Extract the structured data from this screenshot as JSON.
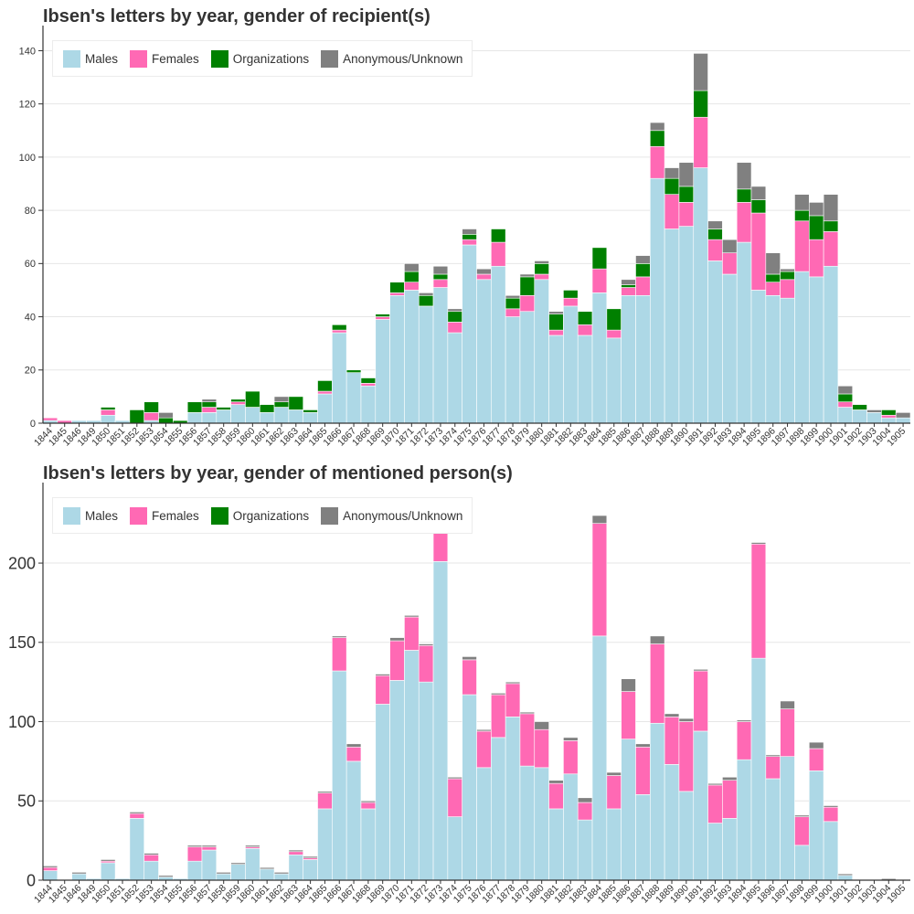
{
  "colors": {
    "Males": "#add8e6",
    "Females": "#ff69b4",
    "Organizations": "#008000",
    "Anonymous/Unknown": "#808080"
  },
  "chart_data": [
    {
      "type": "bar",
      "stacked": true,
      "title": "Ibsen's letters by year, gender of recipient(s)",
      "categories": [
        "1844",
        "1845",
        "1846",
        "1849",
        "1850",
        "1851",
        "1852",
        "1853",
        "1854",
        "1855",
        "1856",
        "1857",
        "1858",
        "1859",
        "1860",
        "1861",
        "1862",
        "1863",
        "1864",
        "1865",
        "1866",
        "1867",
        "1868",
        "1869",
        "1870",
        "1871",
        "1872",
        "1873",
        "1874",
        "1875",
        "1876",
        "1877",
        "1878",
        "1879",
        "1880",
        "1881",
        "1882",
        "1883",
        "1884",
        "1885",
        "1886",
        "1887",
        "1888",
        "1889",
        "1890",
        "1891",
        "1892",
        "1893",
        "1894",
        "1895",
        "1896",
        "1897",
        "1898",
        "1899",
        "1900",
        "1901",
        "1902",
        "1903",
        "1904",
        "1905"
      ],
      "series": [
        {
          "name": "Males",
          "values": [
            1,
            0,
            1,
            1,
            3,
            1,
            0,
            1,
            0,
            0,
            4,
            4,
            5,
            7,
            6,
            4,
            6,
            5,
            4,
            11,
            34,
            19,
            14,
            39,
            48,
            50,
            44,
            51,
            34,
            67,
            54,
            59,
            40,
            42,
            54,
            33,
            44,
            33,
            49,
            32,
            48,
            48,
            92,
            73,
            74,
            96,
            61,
            56,
            68,
            50,
            48,
            47,
            57,
            55,
            59,
            6,
            5,
            4,
            2,
            2
          ]
        },
        {
          "name": "Females",
          "values": [
            1,
            1,
            0,
            0,
            2,
            0,
            0,
            3,
            0,
            0,
            0,
            2,
            0,
            1,
            0,
            0,
            0,
            0,
            0,
            1,
            1,
            0,
            1,
            1,
            1,
            3,
            0,
            3,
            4,
            2,
            2,
            9,
            3,
            6,
            2,
            2,
            3,
            4,
            9,
            3,
            3,
            7,
            12,
            13,
            9,
            19,
            8,
            8,
            15,
            29,
            5,
            7,
            19,
            14,
            13,
            2,
            0,
            0,
            1,
            0
          ]
        },
        {
          "name": "Organizations",
          "values": [
            0,
            0,
            0,
            0,
            1,
            0,
            5,
            4,
            2,
            1,
            4,
            2,
            1,
            1,
            6,
            3,
            2,
            5,
            1,
            4,
            2,
            1,
            2,
            1,
            4,
            4,
            4,
            2,
            4,
            2,
            0,
            5,
            4,
            7,
            4,
            6,
            3,
            5,
            8,
            8,
            1,
            5,
            6,
            6,
            6,
            10,
            4,
            0,
            5,
            5,
            3,
            3,
            4,
            9,
            4,
            3,
            2,
            0,
            2,
            0
          ]
        },
        {
          "name": "Anonymous/Unknown",
          "values": [
            0,
            0,
            0,
            0,
            0,
            0,
            0,
            0,
            2,
            0,
            0,
            1,
            0,
            0,
            0,
            0,
            2,
            0,
            0,
            0,
            0,
            0,
            0,
            0,
            0,
            3,
            1,
            3,
            1,
            2,
            2,
            0,
            1,
            1,
            1,
            1,
            0,
            0,
            0,
            0,
            2,
            3,
            3,
            4,
            9,
            14,
            3,
            5,
            10,
            5,
            8,
            1,
            6,
            5,
            10,
            3,
            0,
            1,
            0,
            2
          ]
        }
      ],
      "ylim": [
        0,
        146
      ],
      "yticks": [
        0,
        20,
        40,
        60,
        80,
        100,
        120,
        140
      ],
      "legend_position": "top-left",
      "grid": "horizontal"
    },
    {
      "type": "bar",
      "stacked": true,
      "title": "Ibsen's letters by year, gender of mentioned person(s)",
      "categories": [
        "1844",
        "1845",
        "1846",
        "1849",
        "1850",
        "1851",
        "1852",
        "1853",
        "1854",
        "1855",
        "1856",
        "1857",
        "1858",
        "1859",
        "1860",
        "1861",
        "1862",
        "1863",
        "1864",
        "1865",
        "1866",
        "1867",
        "1868",
        "1869",
        "1870",
        "1871",
        "1872",
        "1873",
        "1874",
        "1875",
        "1876",
        "1877",
        "1878",
        "1879",
        "1880",
        "1881",
        "1882",
        "1883",
        "1884",
        "1885",
        "1886",
        "1887",
        "1888",
        "1889",
        "1890",
        "1891",
        "1892",
        "1893",
        "1894",
        "1895",
        "1896",
        "1897",
        "1898",
        "1899",
        "1900",
        "1901",
        "1902",
        "1903",
        "1904",
        "1905"
      ],
      "series": [
        {
          "name": "Males",
          "values": [
            6,
            0,
            4,
            1,
            11,
            1,
            39,
            12,
            2,
            1,
            12,
            19,
            4,
            10,
            20,
            7,
            4,
            16,
            13,
            45,
            132,
            75,
            45,
            111,
            126,
            145,
            125,
            201,
            40,
            117,
            71,
            90,
            103,
            72,
            71,
            45,
            67,
            38,
            154,
            45,
            89,
            54,
            99,
            73,
            56,
            94,
            36,
            39,
            76,
            140,
            64,
            78,
            22,
            69,
            37,
            3,
            0,
            0,
            0,
            0
          ]
        },
        {
          "name": "Females",
          "values": [
            2,
            0,
            0,
            0,
            1,
            0,
            3,
            4,
            0,
            0,
            9,
            2,
            0,
            0,
            1,
            0,
            0,
            2,
            1,
            10,
            21,
            9,
            4,
            18,
            25,
            21,
            23,
            19,
            24,
            22,
            23,
            27,
            21,
            33,
            24,
            16,
            21,
            11,
            71,
            21,
            30,
            30,
            50,
            30,
            44,
            38,
            24,
            24,
            24,
            72,
            14,
            30,
            18,
            14,
            9,
            0,
            0,
            0,
            0,
            0
          ]
        },
        {
          "name": "Organizations",
          "values": [
            0,
            0,
            0,
            0,
            0,
            0,
            0,
            0,
            0,
            0,
            0,
            0,
            0,
            0,
            0,
            0,
            0,
            0,
            0,
            0,
            0,
            0,
            0,
            0,
            0,
            0,
            0,
            0,
            0,
            0,
            0,
            0,
            0,
            0,
            0,
            0,
            0,
            0,
            0,
            0,
            0,
            0,
            0,
            0,
            0,
            0,
            0,
            0,
            0,
            0,
            0,
            0,
            0,
            0,
            0,
            0,
            0,
            0,
            0,
            0
          ]
        },
        {
          "name": "Anonymous/Unknown",
          "values": [
            1,
            0,
            1,
            0,
            1,
            0,
            1,
            1,
            1,
            0,
            1,
            1,
            1,
            1,
            1,
            1,
            1,
            1,
            1,
            1,
            1,
            2,
            1,
            1,
            2,
            1,
            1,
            2,
            1,
            2,
            1,
            1,
            1,
            1,
            5,
            2,
            2,
            3,
            5,
            2,
            8,
            2,
            5,
            2,
            2,
            1,
            1,
            2,
            1,
            1,
            1,
            5,
            1,
            4,
            1,
            1,
            0,
            0,
            1,
            0
          ]
        }
      ],
      "ylim": [
        0,
        245
      ],
      "yticks": [
        0,
        50,
        100,
        150,
        200
      ],
      "legend_position": "top-left",
      "grid": "horizontal"
    }
  ]
}
